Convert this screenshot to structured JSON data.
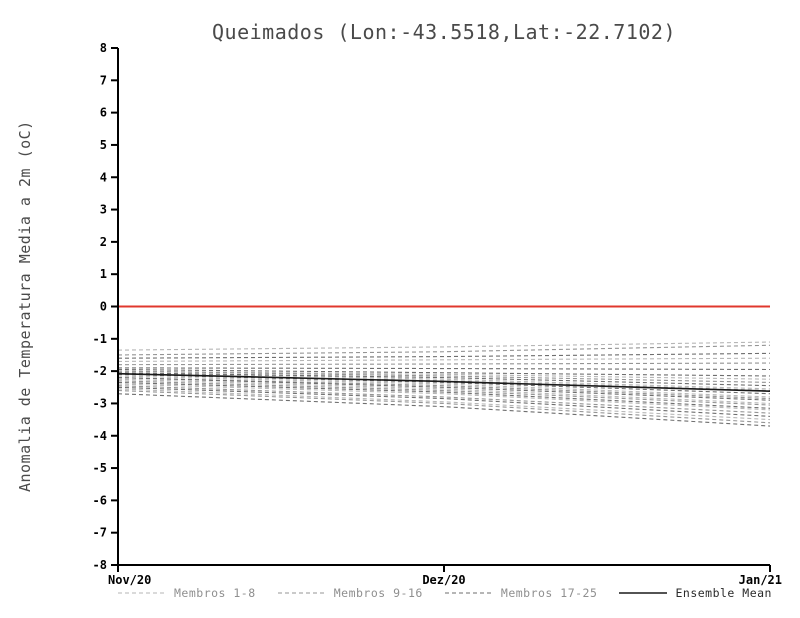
{
  "page": {
    "title": "Queimados (Lon:-43.5518,Lat:-22.7102)"
  },
  "chart_data": {
    "type": "line",
    "title": "Queimados (Lon:-43.5518,Lat:-22.7102)",
    "ylabel": "Anomalia de Temperatura Media a 2m (oC)",
    "xlabel": "",
    "categories": [
      "Nov/20",
      "Dez/20",
      "Jan/21"
    ],
    "ylim": [
      -8,
      8
    ],
    "ytick_step": 1,
    "grid": false,
    "legend_position": "bottom",
    "axis_color": "#000000",
    "zero_line": {
      "value": 0,
      "color": "#e0382e"
    },
    "groups": [
      {
        "name": "Membros 1-8",
        "color": "#b6b6b6",
        "dash": "4 3"
      },
      {
        "name": "Membros 9-16",
        "color": "#949494",
        "dash": "4 3"
      },
      {
        "name": "Membros 17-25",
        "color": "#6e6e6e",
        "dash": "4 3"
      },
      {
        "name": "Ensemble Mean",
        "color": "#1a1a1a",
        "dash": null
      }
    ],
    "series": [
      {
        "name": "Membro 1",
        "group": 0,
        "values": [
          -1.35,
          -1.25,
          -1.1
        ]
      },
      {
        "name": "Membro 2",
        "group": 0,
        "values": [
          -1.7,
          -1.65,
          -1.6
        ]
      },
      {
        "name": "Membro 3",
        "group": 0,
        "values": [
          -2.0,
          -2.1,
          -2.25
        ]
      },
      {
        "name": "Membro 4",
        "group": 0,
        "values": [
          -2.05,
          -2.25,
          -2.55
        ]
      },
      {
        "name": "Membro 5",
        "group": 0,
        "values": [
          -2.15,
          -2.4,
          -2.8
        ]
      },
      {
        "name": "Membro 6",
        "group": 0,
        "values": [
          -2.25,
          -2.55,
          -3.0
        ]
      },
      {
        "name": "Membro 7",
        "group": 0,
        "values": [
          -2.4,
          -2.7,
          -3.2
        ]
      },
      {
        "name": "Membro 8",
        "group": 0,
        "values": [
          -2.55,
          -2.95,
          -3.5
        ]
      },
      {
        "name": "Membro 9",
        "group": 1,
        "values": [
          -1.5,
          -1.4,
          -1.2
        ]
      },
      {
        "name": "Membro 10",
        "group": 1,
        "values": [
          -1.8,
          -1.78,
          -1.75
        ]
      },
      {
        "name": "Membro 11",
        "group": 1,
        "values": [
          -2.0,
          -2.15,
          -2.35
        ]
      },
      {
        "name": "Membro 12",
        "group": 1,
        "values": [
          -2.1,
          -2.3,
          -2.6
        ]
      },
      {
        "name": "Membro 13",
        "group": 1,
        "values": [
          -2.2,
          -2.45,
          -2.85
        ]
      },
      {
        "name": "Membro 14",
        "group": 1,
        "values": [
          -2.3,
          -2.6,
          -3.05
        ]
      },
      {
        "name": "Membro 15",
        "group": 1,
        "values": [
          -2.45,
          -2.8,
          -3.3
        ]
      },
      {
        "name": "Membro 16",
        "group": 1,
        "values": [
          -2.6,
          -3.0,
          -3.6
        ]
      },
      {
        "name": "Membro 17",
        "group": 2,
        "values": [
          -1.6,
          -1.55,
          -1.45
        ]
      },
      {
        "name": "Membro 18",
        "group": 2,
        "values": [
          -1.9,
          -1.92,
          -1.95
        ]
      },
      {
        "name": "Membro 19",
        "group": 2,
        "values": [
          -1.95,
          -2.05,
          -2.15
        ]
      },
      {
        "name": "Membro 20",
        "group": 2,
        "values": [
          -2.05,
          -2.2,
          -2.45
        ]
      },
      {
        "name": "Membro 21",
        "group": 2,
        "values": [
          -2.1,
          -2.35,
          -2.7
        ]
      },
      {
        "name": "Membro 22",
        "group": 2,
        "values": [
          -2.2,
          -2.5,
          -2.9
        ]
      },
      {
        "name": "Membro 23",
        "group": 2,
        "values": [
          -2.35,
          -2.65,
          -3.15
        ]
      },
      {
        "name": "Membro 24",
        "group": 2,
        "values": [
          -2.5,
          -2.85,
          -3.4
        ]
      },
      {
        "name": "Membro 25",
        "group": 2,
        "values": [
          -2.7,
          -3.1,
          -3.7
        ]
      },
      {
        "name": "Ensemble Mean",
        "group": 3,
        "values": [
          -2.08,
          -2.32,
          -2.62
        ]
      }
    ]
  }
}
